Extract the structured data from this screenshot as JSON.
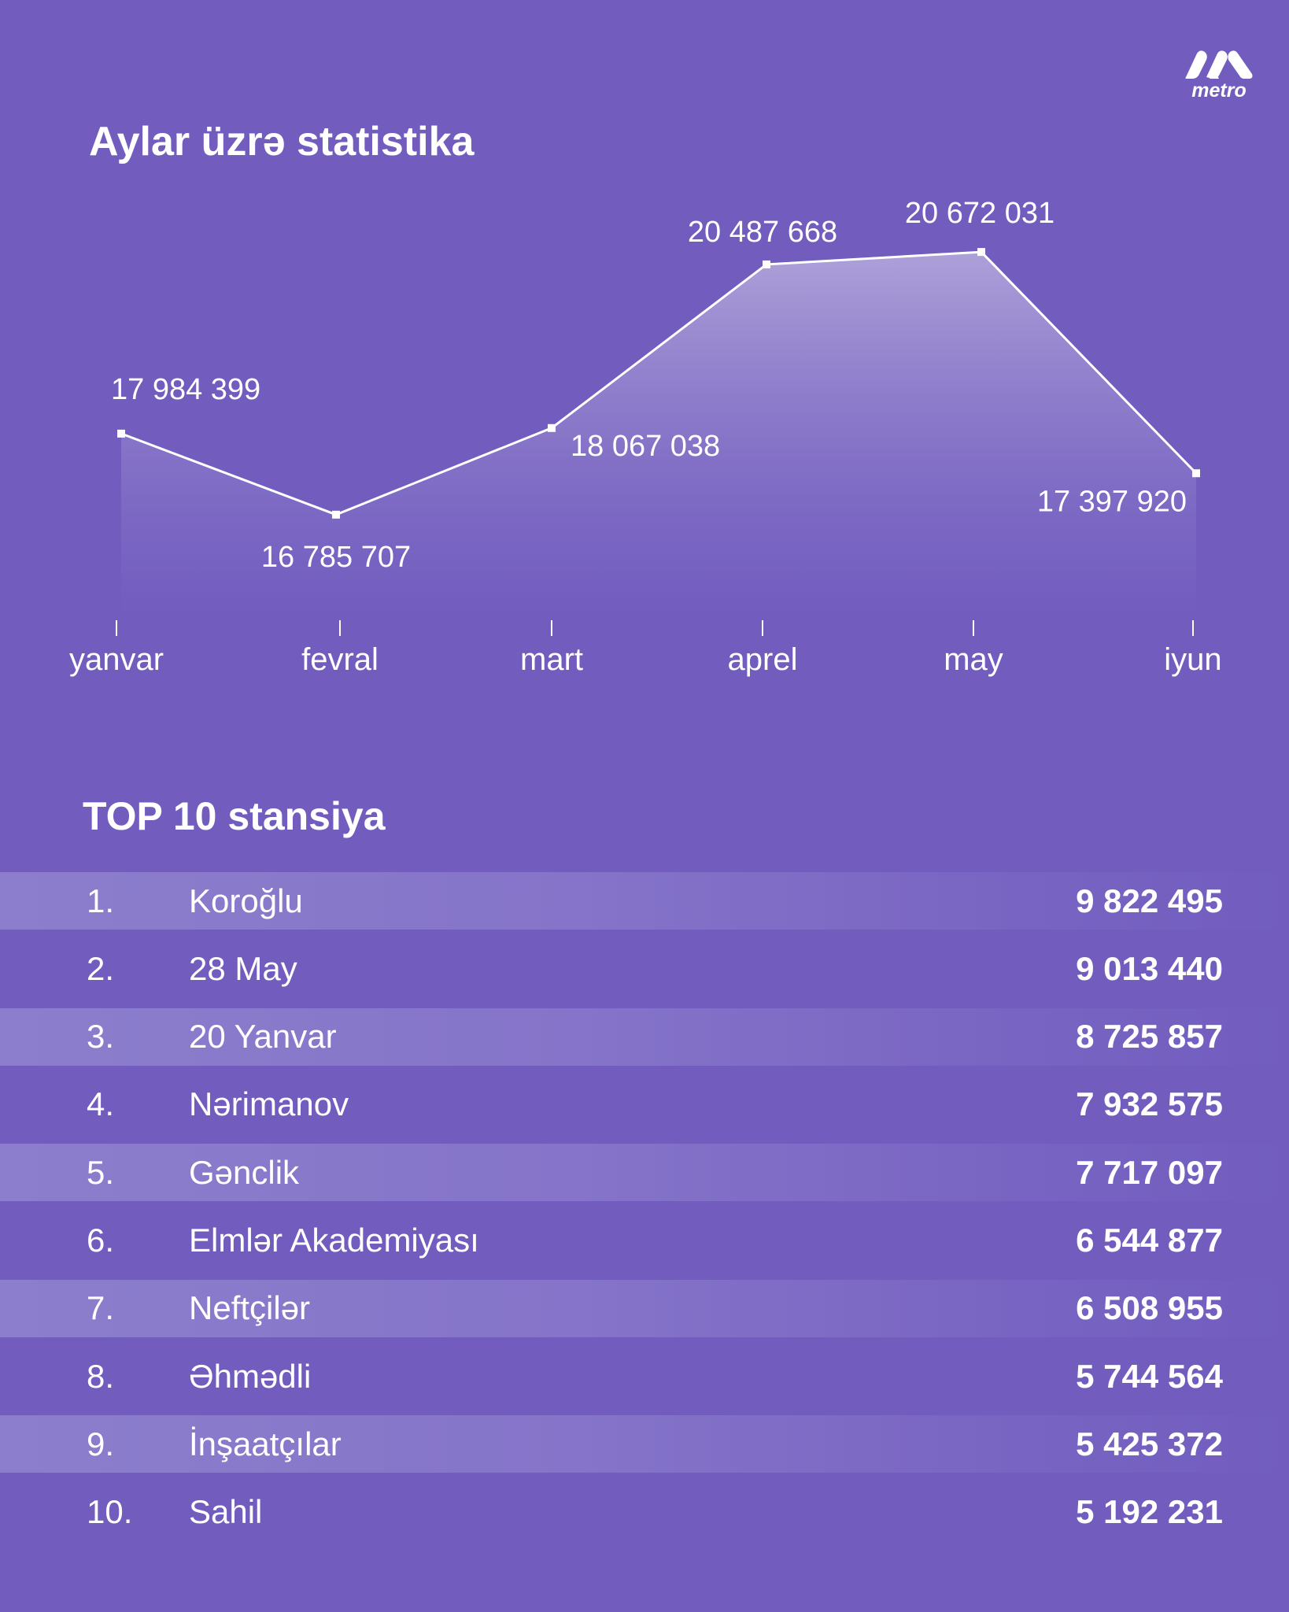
{
  "logo": {
    "text": "metro"
  },
  "title": "Aylar üzrə statistika",
  "chart_data": {
    "type": "area",
    "title": "Aylar üzrə statistika",
    "categories": [
      "yanvar",
      "fevral",
      "mart",
      "aprel",
      "may",
      "iyun"
    ],
    "values": [
      17984399,
      16785707,
      18067038,
      20487668,
      20672031,
      17397920
    ],
    "labels": [
      "17 984 399",
      "16 785 707",
      "18 067 038",
      "20 487 668",
      "20 672 031",
      "17 397 920"
    ],
    "xlabel": "",
    "ylabel": "",
    "ylim": [
      15270000,
      21500000
    ],
    "grid": false
  },
  "top": {
    "title": "TOP 10 stansiya",
    "rows": [
      {
        "rank": "1.",
        "name": "Koroğlu",
        "value": "9 822 495"
      },
      {
        "rank": "2.",
        "name": "28 May",
        "value": "9 013 440"
      },
      {
        "rank": "3.",
        "name": "20 Yanvar",
        "value": "8 725 857"
      },
      {
        "rank": "4.",
        "name": "Nərimanov",
        "value": "7 932 575"
      },
      {
        "rank": "5.",
        "name": "Gənclik",
        "value": "7 717 097"
      },
      {
        "rank": "6.",
        "name": "Elmlər Akademiyası",
        "value": "6 544 877"
      },
      {
        "rank": "7.",
        "name": "Neftçilər",
        "value": "6 508 955"
      },
      {
        "rank": "8.",
        "name": "Əhmədli",
        "value": "5 744 564"
      },
      {
        "rank": "9.",
        "name": "İnşaatçılar",
        "value": "5 425 372"
      },
      {
        "rank": "10.",
        "name": "Sahil",
        "value": "5 192 231"
      }
    ]
  }
}
